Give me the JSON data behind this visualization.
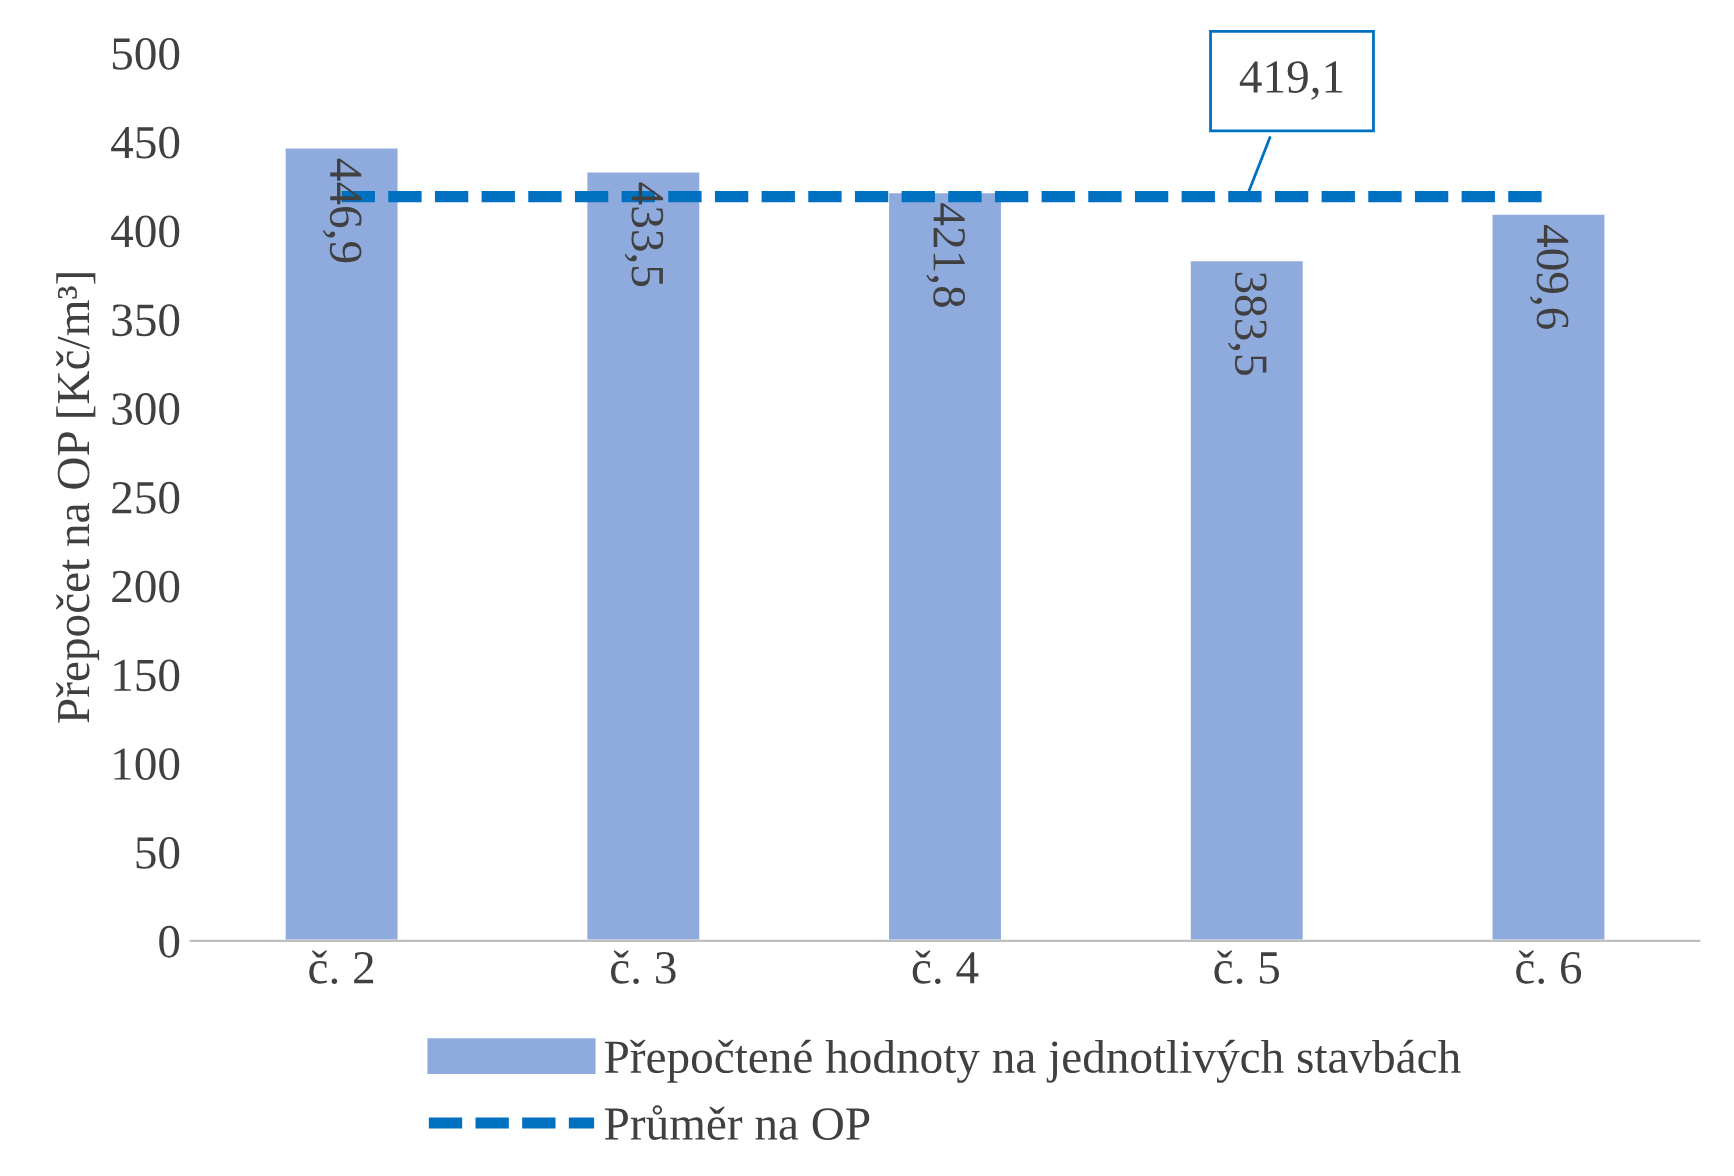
{
  "chart_data": {
    "type": "bar",
    "ylabel": "Přepočet na OP [Kč/m³]",
    "categories": [
      "č. 2",
      "č. 3",
      "č. 4",
      "č. 5",
      "č. 6"
    ],
    "series": [
      {
        "name": "Přepočtené hodnoty na jednotlivých stavbách",
        "color": "#8faadc",
        "values": [
          446.9,
          433.5,
          421.8,
          383.5,
          409.6
        ],
        "value_labels": [
          "446,9",
          "433,5",
          "421,8",
          "383,5",
          "409,6"
        ]
      },
      {
        "name": "Průměr na OP",
        "type": "line",
        "color": "#0070c0",
        "line_style": "dashed",
        "values": [
          419.1,
          419.1,
          419.1,
          419.1,
          419.1
        ],
        "value_labels": [
          null,
          null,
          null,
          "419,1",
          null
        ]
      }
    ],
    "ylim": [
      0,
      500
    ],
    "yticks": [
      0,
      50,
      100,
      150,
      200,
      250,
      300,
      350,
      400,
      450,
      500
    ],
    "grid": false,
    "legend": "bottom",
    "marker": "none"
  }
}
